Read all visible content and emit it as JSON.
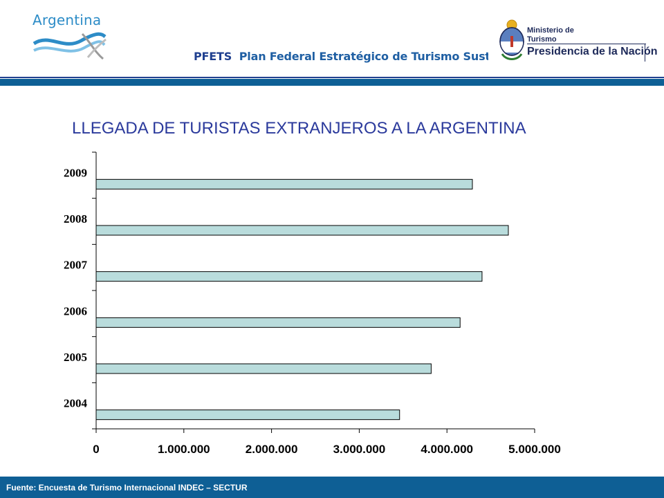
{
  "header": {
    "brand_name": "Argentina",
    "program_acronym": "PFETS",
    "program_name": "Plan Federal Estratégico de Turismo Sustentable",
    "ministry_line1": "Ministerio de",
    "ministry_line2": "Turismo",
    "ministry_presidency": "Presidencia de la Nación"
  },
  "footer": {
    "source": "Fuente: Encuesta de Turismo Internacional INDEC – SECTUR"
  },
  "colors": {
    "header_blue": "#0e5f95",
    "title_blue": "#2b3a9c",
    "bar_fill": "#b9dcdc"
  },
  "chart_data": {
    "type": "bar",
    "orientation": "horizontal",
    "title": "LLEGADA DE TURISTAS EXTRANJEROS A LA ARGENTINA",
    "categories": [
      "2009",
      "2008",
      "2007",
      "2006",
      "2005",
      "2004"
    ],
    "values": [
      4290000,
      4700000,
      4400000,
      4150000,
      3820000,
      3460000
    ],
    "xlim": [
      0,
      5000000
    ],
    "x_ticks": [
      0,
      1000000,
      2000000,
      3000000,
      4000000,
      5000000
    ],
    "x_tick_labels": [
      "0",
      "1.000.000",
      "2.000.000",
      "3.000.000",
      "4.000.000",
      "5.000.000"
    ],
    "xlabel": "",
    "ylabel": "",
    "grid": false,
    "legend": "none"
  }
}
